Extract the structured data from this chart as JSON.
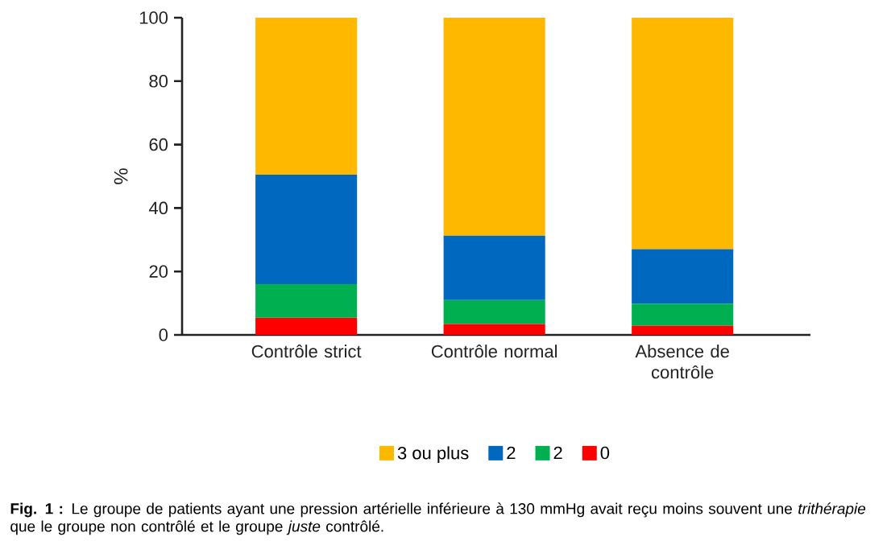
{
  "chart_data": {
    "type": "bar",
    "stacked": true,
    "ylabel": "%",
    "categories": [
      "Contrôle strict",
      "Contrôle normal",
      "Absence de contrôle"
    ],
    "series": [
      {
        "name": "0",
        "color": "#ff0000",
        "values": [
          5.4,
          3.4,
          2.9
        ]
      },
      {
        "name": "2",
        "color": "#00b050",
        "values": [
          10.6,
          7.6,
          6.9
        ]
      },
      {
        "name": "2",
        "color": "#0069bf",
        "values": [
          34.5,
          20.3,
          17.2
        ]
      },
      {
        "name": "3 ou plus",
        "color": "#ffb800",
        "values": [
          49.5,
          68.7,
          73.0
        ]
      }
    ],
    "ylim": [
      0,
      100
    ],
    "yticks": [
      0,
      20,
      40,
      60,
      80,
      100
    ],
    "legend": "bottom",
    "annotations": [
      "**Fig. 1 :** Le groupe de patients ayant une pression artérielle inférieure à 130 mmHg avait reçu moins souvent une *trithérapie* que le groupe non contrôlé et le groupe *juste* contrôlé."
    ]
  }
}
